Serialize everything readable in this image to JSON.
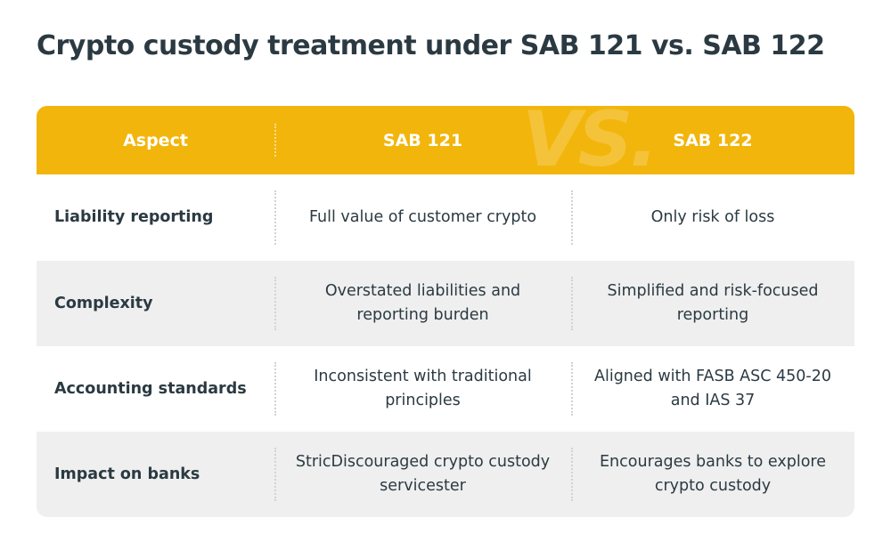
{
  "title": "Crypto custody treatment under SAB 121 vs. SAB 122",
  "header": {
    "col1": "Aspect",
    "col2": "SAB 121",
    "col3": "SAB 122",
    "watermark": "VS."
  },
  "rows": [
    {
      "aspect": "Liability reporting",
      "sab121": "Full value of customer crypto",
      "sab122": "Only risk of loss"
    },
    {
      "aspect": "Complexity",
      "sab121": "Overstated liabilities and reporting burden",
      "sab122": "Simplified and risk-focused reporting"
    },
    {
      "aspect": "Accounting standards",
      "sab121": "Inconsistent with traditional principles",
      "sab122": "Aligned with FASB ASC 450-20 and IAS 37"
    },
    {
      "aspect": "Impact on banks",
      "sab121": "StricDiscouraged crypto custody servicester",
      "sab122": "Encourages banks to explore crypto custody"
    }
  ],
  "colors": {
    "header_bg": "#f2b50b",
    "title_text": "#2b3a42",
    "row_shade": "#efefef"
  }
}
